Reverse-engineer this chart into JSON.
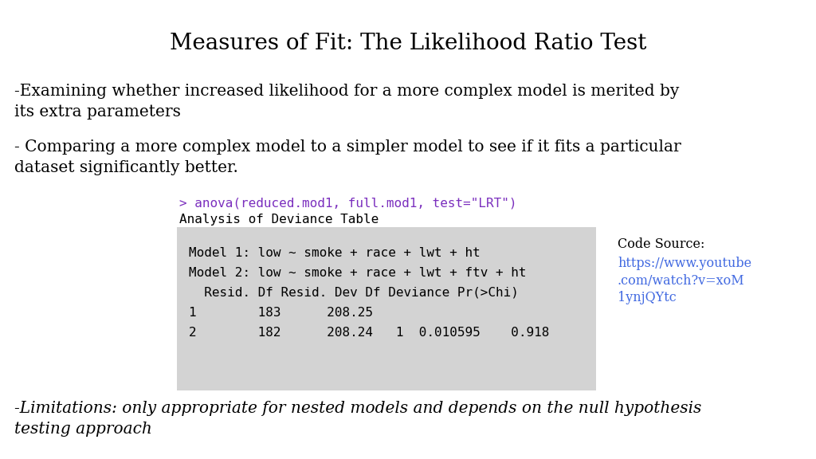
{
  "title": "Measures of Fit: The Likelihood Ratio Test",
  "bullet1": "-Examining whether increased likelihood for a more complex model is merited by\nits extra parameters",
  "bullet2": "- Comparing a more complex model to a simpler model to see if it fits a particular\ndataset significantly better.",
  "code_command": "> anova(reduced.mod1, full.mod1, test=\"LRT\")",
  "code_line2": "Analysis of Deviance Table",
  "table_row0": "Model 1: low ~ smoke + race + lwt + ht",
  "table_row1": "Model 2: low ~ smoke + race + lwt + ftv + ht",
  "table_row2": "  Resid. Df Resid. Dev Df Deviance Pr(>Chi)",
  "table_data_1": "1        183      208.25",
  "table_data_2": "2        182      208.24   1  0.010595    0.918",
  "code_source_label": "Code Source:",
  "code_source_link": "https://www.youtube\n.com/watch?v=xoM\n1ynjQYtc",
  "limitations": "-Limitations: only appropriate for nested models and depends on the null hypothesis\ntesting approach",
  "bg_color": "#ffffff",
  "table_bg": "#d3d3d3",
  "title_fontsize": 20,
  "body_fontsize": 14.5,
  "code_fontsize": 11.5,
  "source_fontsize": 11.5,
  "link_color": "#4169e1",
  "purple_color": "#7b2fbe"
}
